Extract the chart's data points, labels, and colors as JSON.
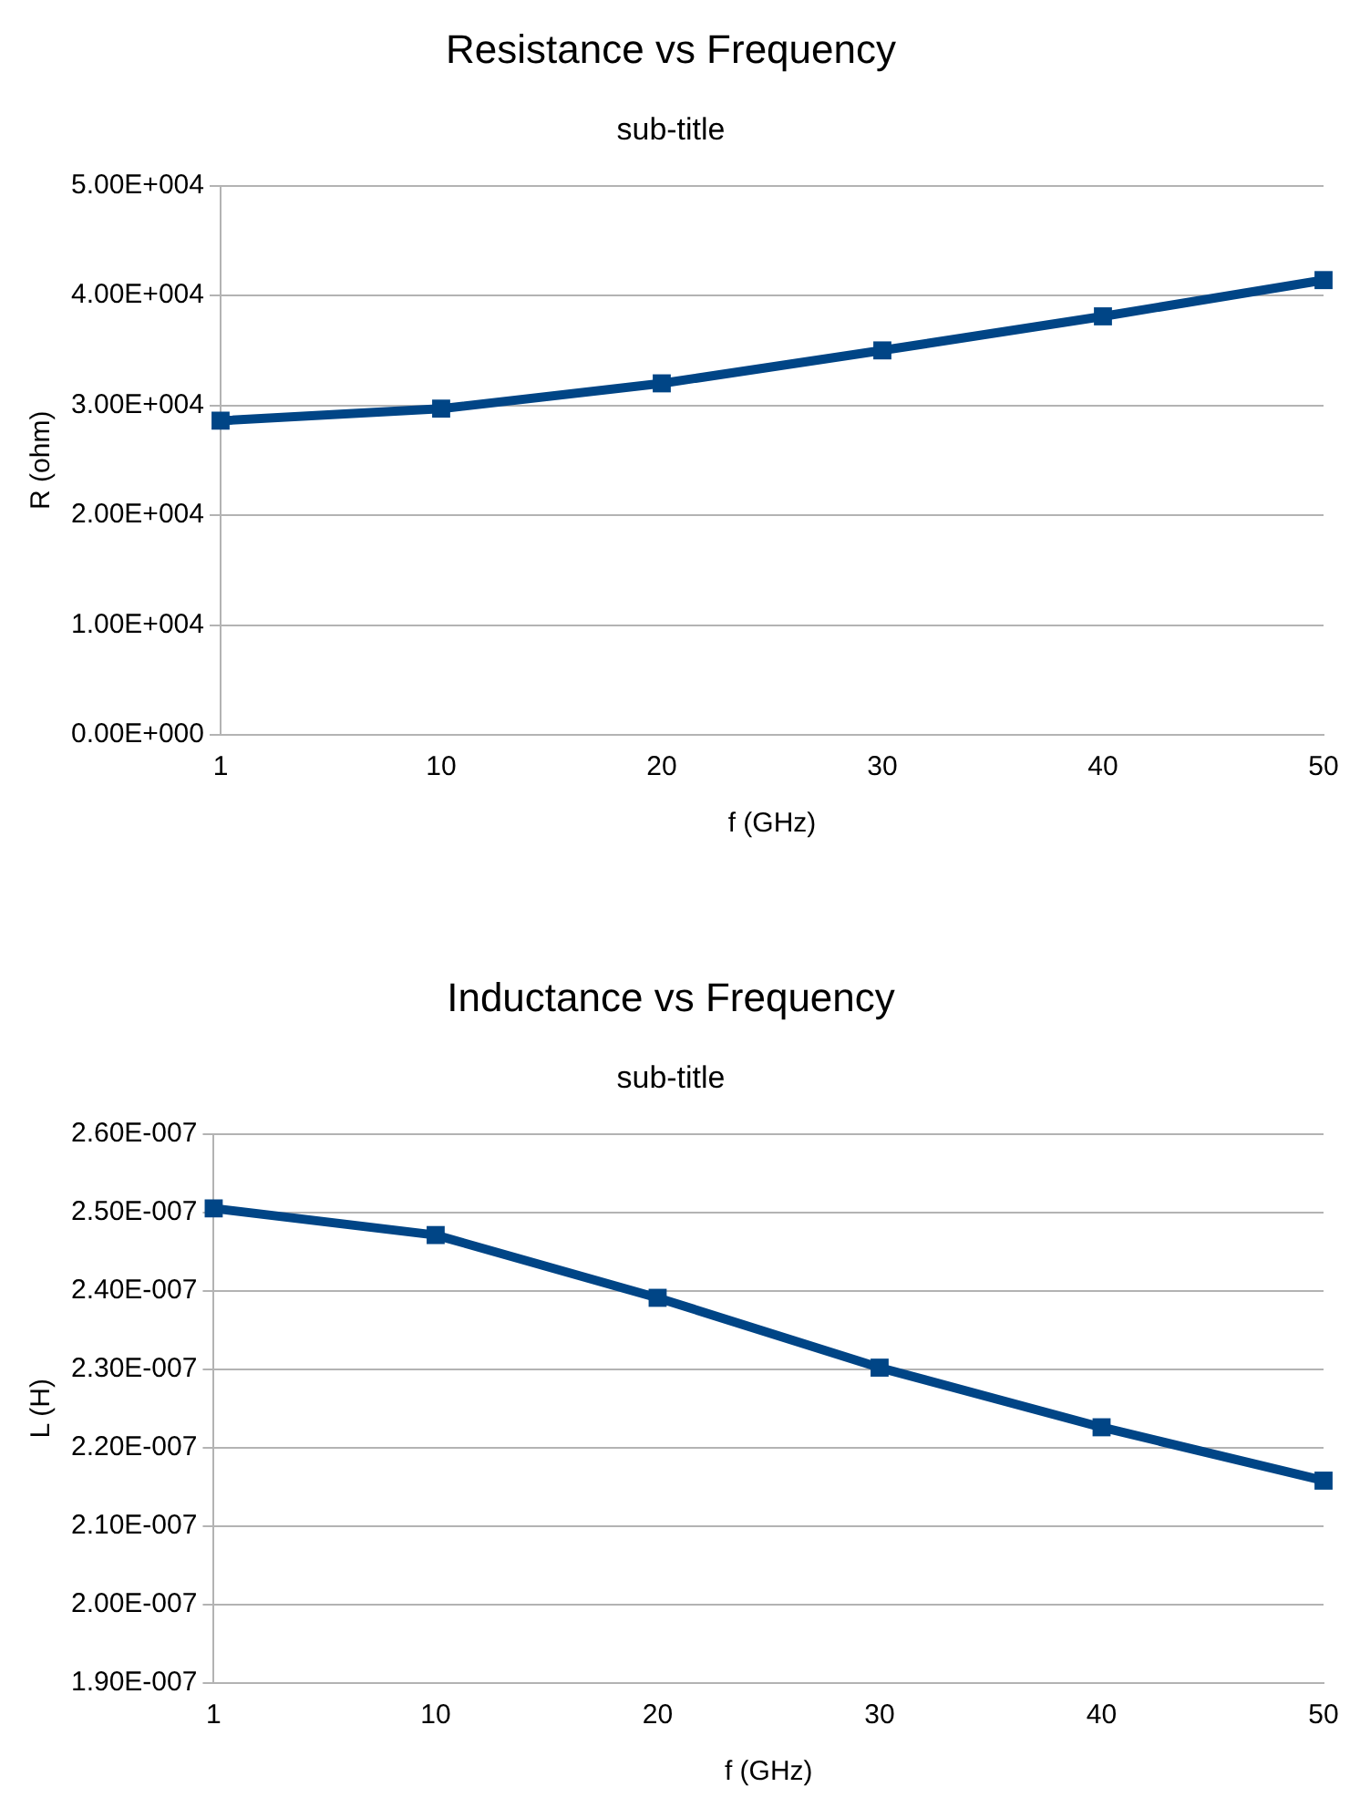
{
  "chart_data": [
    {
      "type": "line",
      "title": "Resistance vs Frequency",
      "subtitle": "sub-title",
      "xlabel": "f (GHz)",
      "ylabel": "R (ohm)",
      "categories": [
        "1",
        "10",
        "20",
        "30",
        "40",
        "50"
      ],
      "series": [
        {
          "color": "#004586",
          "values": [
            28600,
            29700,
            32000,
            35000,
            38100,
            41400
          ]
        }
      ],
      "ylim": [
        0,
        50000
      ],
      "yticks": [
        {
          "value": 0,
          "label": "0.00E+000"
        },
        {
          "value": 10000,
          "label": "1.00E+004"
        },
        {
          "value": 20000,
          "label": "2.00E+004"
        },
        {
          "value": 30000,
          "label": "3.00E+004"
        },
        {
          "value": 40000,
          "label": "4.00E+004"
        },
        {
          "value": 50000,
          "label": "5.00E+004"
        }
      ],
      "grid": "y",
      "marker": "square",
      "line_style": "solid"
    },
    {
      "type": "line",
      "title": "Inductance vs Frequency",
      "subtitle": "sub-title",
      "xlabel": "f (GHz)",
      "ylabel": "L (H)",
      "categories": [
        "1",
        "10",
        "20",
        "30",
        "40",
        "50"
      ],
      "series": [
        {
          "color": "#004586",
          "values": [
            2.505e-07,
            2.471e-07,
            2.391e-07,
            2.302e-07,
            2.226e-07,
            2.158e-07
          ]
        }
      ],
      "ylim": [
        1.9e-07,
        2.6e-07
      ],
      "yticks": [
        {
          "value": 1.9e-07,
          "label": "1.90E-007"
        },
        {
          "value": 2e-07,
          "label": "2.00E-007"
        },
        {
          "value": 2.1e-07,
          "label": "2.10E-007"
        },
        {
          "value": 2.2e-07,
          "label": "2.20E-007"
        },
        {
          "value": 2.3e-07,
          "label": "2.30E-007"
        },
        {
          "value": 2.4e-07,
          "label": "2.40E-007"
        },
        {
          "value": 2.5e-07,
          "label": "2.50E-007"
        },
        {
          "value": 2.6e-07,
          "label": "2.60E-007"
        }
      ],
      "grid": "y",
      "marker": "square",
      "line_style": "solid"
    }
  ]
}
